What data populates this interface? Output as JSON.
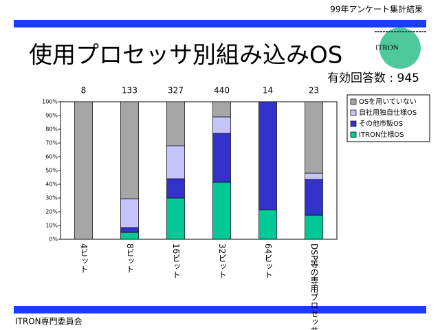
{
  "slide": {
    "header": "99年アンケート集計結果",
    "title": "使用プロセッサ別組み込みOS",
    "response_note": "有効回答数 : 945",
    "footer": "ITRON専門委員会",
    "logo": "ITRON"
  },
  "chart_data": {
    "type": "stacked_bar_100",
    "categories": [
      "4ビット",
      "8ビット",
      "16ビット",
      "32ビット",
      "64ビット",
      "DSP等の専用プロセッサ"
    ],
    "totals": [
      8,
      133,
      327,
      440,
      14,
      23
    ],
    "series": [
      {
        "name": "ITRON仕様OS",
        "color": "#00c896",
        "values": [
          0,
          5,
          30,
          41.5,
          21.5,
          17.5
        ]
      },
      {
        "name": "その他市販OS",
        "color": "#3333cc",
        "values": [
          0,
          3.5,
          14,
          35.5,
          78.5,
          26
        ]
      },
      {
        "name": "自社用独自仕様OS",
        "color": "#c4c4ff",
        "values": [
          0,
          21,
          24,
          12,
          0,
          4.5
        ]
      },
      {
        "name": "OSを用いていない",
        "color": "#a6a6a6",
        "values": [
          100,
          70.5,
          32,
          11,
          0,
          52
        ]
      }
    ],
    "ylim": [
      0,
      100
    ],
    "yticks": [
      {
        "value": 0,
        "label": "0%"
      },
      {
        "value": 10,
        "label": "10%"
      },
      {
        "value": 20,
        "label": "20%"
      },
      {
        "value": 30,
        "label": "30%"
      },
      {
        "value": 40,
        "label": "40%"
      },
      {
        "value": 50,
        "label": "50%"
      },
      {
        "value": 60,
        "label": "60%"
      },
      {
        "value": 70,
        "label": "70%"
      },
      {
        "value": 80,
        "label": "80%"
      },
      {
        "value": 90,
        "label": "90%"
      },
      {
        "value": 100,
        "label": "100%"
      }
    ]
  }
}
